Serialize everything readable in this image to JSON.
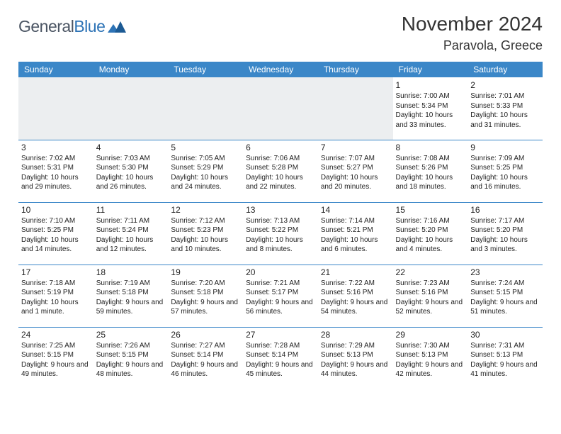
{
  "brand": {
    "general": "General",
    "blue": "Blue"
  },
  "title": "November 2024",
  "location": "Paravola, Greece",
  "colors": {
    "header_bg": "#3b87c8",
    "header_text": "#ffffff",
    "cell_border": "#3b87c8",
    "empty_bg": "#eceef0",
    "text": "#222222",
    "logo_gray": "#4b5563",
    "logo_blue": "#2d73b6"
  },
  "weekdays": [
    "Sunday",
    "Monday",
    "Tuesday",
    "Wednesday",
    "Thursday",
    "Friday",
    "Saturday"
  ],
  "grid": [
    [
      null,
      null,
      null,
      null,
      null,
      {
        "n": "1",
        "sr": "7:00 AM",
        "ss": "5:34 PM",
        "dl": "10 hours and 33 minutes."
      },
      {
        "n": "2",
        "sr": "7:01 AM",
        "ss": "5:33 PM",
        "dl": "10 hours and 31 minutes."
      }
    ],
    [
      {
        "n": "3",
        "sr": "7:02 AM",
        "ss": "5:31 PM",
        "dl": "10 hours and 29 minutes."
      },
      {
        "n": "4",
        "sr": "7:03 AM",
        "ss": "5:30 PM",
        "dl": "10 hours and 26 minutes."
      },
      {
        "n": "5",
        "sr": "7:05 AM",
        "ss": "5:29 PM",
        "dl": "10 hours and 24 minutes."
      },
      {
        "n": "6",
        "sr": "7:06 AM",
        "ss": "5:28 PM",
        "dl": "10 hours and 22 minutes."
      },
      {
        "n": "7",
        "sr": "7:07 AM",
        "ss": "5:27 PM",
        "dl": "10 hours and 20 minutes."
      },
      {
        "n": "8",
        "sr": "7:08 AM",
        "ss": "5:26 PM",
        "dl": "10 hours and 18 minutes."
      },
      {
        "n": "9",
        "sr": "7:09 AM",
        "ss": "5:25 PM",
        "dl": "10 hours and 16 minutes."
      }
    ],
    [
      {
        "n": "10",
        "sr": "7:10 AM",
        "ss": "5:25 PM",
        "dl": "10 hours and 14 minutes."
      },
      {
        "n": "11",
        "sr": "7:11 AM",
        "ss": "5:24 PM",
        "dl": "10 hours and 12 minutes."
      },
      {
        "n": "12",
        "sr": "7:12 AM",
        "ss": "5:23 PM",
        "dl": "10 hours and 10 minutes."
      },
      {
        "n": "13",
        "sr": "7:13 AM",
        "ss": "5:22 PM",
        "dl": "10 hours and 8 minutes."
      },
      {
        "n": "14",
        "sr": "7:14 AM",
        "ss": "5:21 PM",
        "dl": "10 hours and 6 minutes."
      },
      {
        "n": "15",
        "sr": "7:16 AM",
        "ss": "5:20 PM",
        "dl": "10 hours and 4 minutes."
      },
      {
        "n": "16",
        "sr": "7:17 AM",
        "ss": "5:20 PM",
        "dl": "10 hours and 3 minutes."
      }
    ],
    [
      {
        "n": "17",
        "sr": "7:18 AM",
        "ss": "5:19 PM",
        "dl": "10 hours and 1 minute."
      },
      {
        "n": "18",
        "sr": "7:19 AM",
        "ss": "5:18 PM",
        "dl": "9 hours and 59 minutes."
      },
      {
        "n": "19",
        "sr": "7:20 AM",
        "ss": "5:18 PM",
        "dl": "9 hours and 57 minutes."
      },
      {
        "n": "20",
        "sr": "7:21 AM",
        "ss": "5:17 PM",
        "dl": "9 hours and 56 minutes."
      },
      {
        "n": "21",
        "sr": "7:22 AM",
        "ss": "5:16 PM",
        "dl": "9 hours and 54 minutes."
      },
      {
        "n": "22",
        "sr": "7:23 AM",
        "ss": "5:16 PM",
        "dl": "9 hours and 52 minutes."
      },
      {
        "n": "23",
        "sr": "7:24 AM",
        "ss": "5:15 PM",
        "dl": "9 hours and 51 minutes."
      }
    ],
    [
      {
        "n": "24",
        "sr": "7:25 AM",
        "ss": "5:15 PM",
        "dl": "9 hours and 49 minutes."
      },
      {
        "n": "25",
        "sr": "7:26 AM",
        "ss": "5:15 PM",
        "dl": "9 hours and 48 minutes."
      },
      {
        "n": "26",
        "sr": "7:27 AM",
        "ss": "5:14 PM",
        "dl": "9 hours and 46 minutes."
      },
      {
        "n": "27",
        "sr": "7:28 AM",
        "ss": "5:14 PM",
        "dl": "9 hours and 45 minutes."
      },
      {
        "n": "28",
        "sr": "7:29 AM",
        "ss": "5:13 PM",
        "dl": "9 hours and 44 minutes."
      },
      {
        "n": "29",
        "sr": "7:30 AM",
        "ss": "5:13 PM",
        "dl": "9 hours and 42 minutes."
      },
      {
        "n": "30",
        "sr": "7:31 AM",
        "ss": "5:13 PM",
        "dl": "9 hours and 41 minutes."
      }
    ]
  ],
  "labels": {
    "sunrise": "Sunrise:",
    "sunset": "Sunset:",
    "daylight": "Daylight:"
  }
}
